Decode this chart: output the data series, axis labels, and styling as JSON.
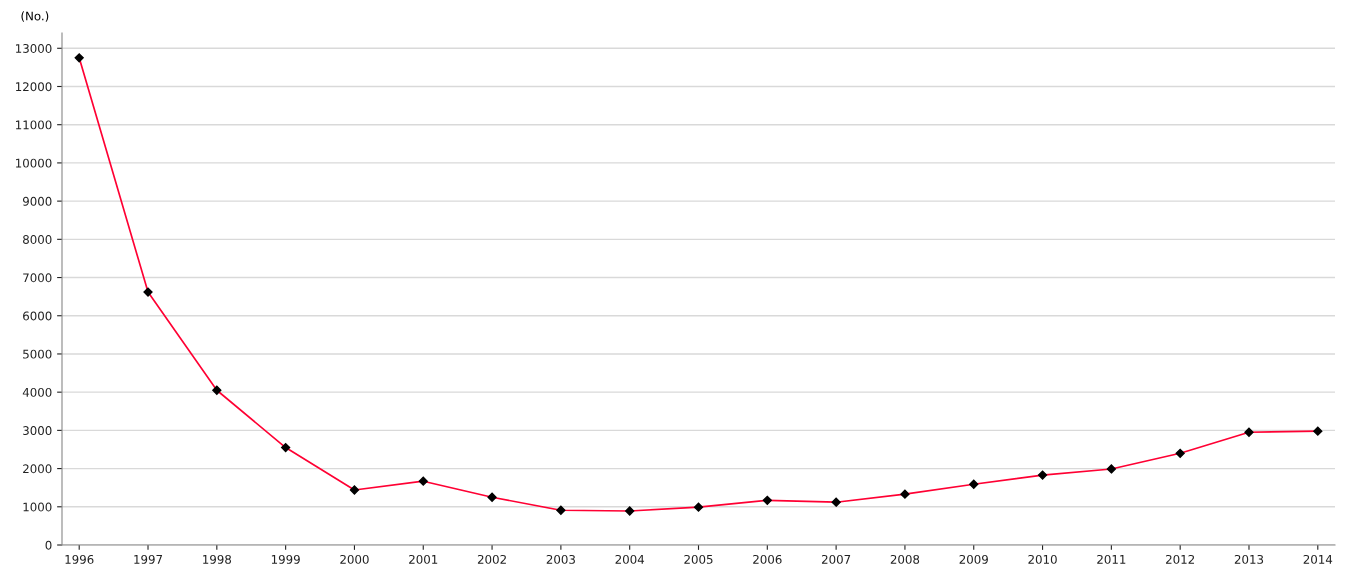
{
  "chart_data": {
    "type": "line",
    "ylabel": "(No.)",
    "categories": [
      "1996",
      "1997",
      "1998",
      "1999",
      "2000",
      "2001",
      "2002",
      "2003",
      "2004",
      "2005",
      "2006",
      "2007",
      "2008",
      "2009",
      "2010",
      "2011",
      "2012",
      "2013",
      "2014"
    ],
    "series": [
      {
        "color": "#ff0033",
        "values": [
          12750,
          6620,
          4050,
          2550,
          1440,
          1670,
          1250,
          910,
          890,
          990,
          1170,
          1120,
          1330,
          1590,
          1830,
          1990,
          2400,
          2950,
          2980
        ]
      }
    ],
    "ylim": [
      0,
      13400
    ],
    "yticks": [
      0,
      1000,
      2000,
      3000,
      4000,
      5000,
      6000,
      7000,
      8000,
      9000,
      10000,
      11000,
      12000,
      13000
    ],
    "grid": "y",
    "marker": "diamond",
    "line_style": "solid",
    "legend": false
  }
}
